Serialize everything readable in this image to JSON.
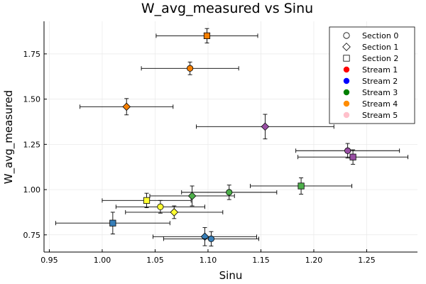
{
  "chart_data": {
    "type": "scatter",
    "title": "W_avg_measured vs Sinu",
    "xlabel": "Sinu",
    "ylabel": "W_avg_measured",
    "xlim": [
      0.945,
      1.298
    ],
    "ylim": [
      0.655,
      1.93
    ],
    "xticks": [
      0.95,
      1.0,
      1.05,
      1.1,
      1.15,
      1.2,
      1.25
    ],
    "xtick_labels": [
      "0.95",
      "1.00",
      "1.05",
      "1.10",
      "1.15",
      "1.20",
      "1.25"
    ],
    "yticks": [
      0.75,
      1.0,
      1.25,
      1.5,
      1.75
    ],
    "ytick_labels": [
      "0.75",
      "1.00",
      "1.25",
      "1.50",
      "1.75"
    ],
    "grid": true,
    "legend_position": "top-right",
    "legend": {
      "shapes": [
        {
          "label": "Section 0",
          "shape": "circle"
        },
        {
          "label": "Section 1",
          "shape": "diamond"
        },
        {
          "label": "Section 2",
          "shape": "square"
        }
      ],
      "colors": [
        {
          "label": "Stream 1",
          "color": "#ff0000"
        },
        {
          "label": "Stream 2",
          "color": "#0000ff"
        },
        {
          "label": "Stream 3",
          "color": "#008000"
        },
        {
          "label": "Stream 4",
          "color": "#ff8c00"
        },
        {
          "label": "Stream 5",
          "color": "#ffc0cb"
        }
      ]
    },
    "points": [
      {
        "x": 1.099,
        "y": 1.85,
        "xerr": 0.048,
        "yerr": 0.04,
        "shape": "square",
        "color": "#f57f00"
      },
      {
        "x": 1.083,
        "y": 1.67,
        "xerr": 0.046,
        "yerr": 0.035,
        "shape": "circle",
        "color": "#f57f00"
      },
      {
        "x": 1.023,
        "y": 1.458,
        "xerr": 0.044,
        "yerr": 0.045,
        "shape": "diamond",
        "color": "#f57f00"
      },
      {
        "x": 1.154,
        "y": 1.348,
        "xerr": 0.065,
        "yerr": 0.068,
        "shape": "diamond",
        "color": "#984ea3"
      },
      {
        "x": 1.232,
        "y": 1.215,
        "xerr": 0.049,
        "yerr": 0.04,
        "shape": "circle",
        "color": "#984ea3"
      },
      {
        "x": 1.237,
        "y": 1.18,
        "xerr": 0.052,
        "yerr": 0.04,
        "shape": "square",
        "color": "#984ea3"
      },
      {
        "x": 1.188,
        "y": 1.02,
        "xerr": 0.048,
        "yerr": 0.045,
        "shape": "square",
        "color": "#4daf4a"
      },
      {
        "x": 1.12,
        "y": 0.985,
        "xerr": 0.045,
        "yerr": 0.04,
        "shape": "circle",
        "color": "#4daf4a"
      },
      {
        "x": 1.085,
        "y": 0.965,
        "xerr": 0.04,
        "yerr": 0.055,
        "shape": "diamond",
        "color": "#4daf4a"
      },
      {
        "x": 1.042,
        "y": 0.94,
        "xerr": 0.042,
        "yerr": 0.04,
        "shape": "square",
        "color": "#ffff33"
      },
      {
        "x": 1.055,
        "y": 0.905,
        "xerr": 0.042,
        "yerr": 0.035,
        "shape": "circle",
        "color": "#ffff33"
      },
      {
        "x": 1.068,
        "y": 0.875,
        "xerr": 0.046,
        "yerr": 0.035,
        "shape": "diamond",
        "color": "#ffff33"
      },
      {
        "x": 1.01,
        "y": 0.815,
        "xerr": 0.054,
        "yerr": 0.06,
        "shape": "square",
        "color": "#377eb8"
      },
      {
        "x": 1.097,
        "y": 0.74,
        "xerr": 0.049,
        "yerr": 0.05,
        "shape": "diamond",
        "color": "#377eb8"
      },
      {
        "x": 1.103,
        "y": 0.728,
        "xerr": 0.045,
        "yerr": 0.04,
        "shape": "circle",
        "color": "#377eb8"
      }
    ]
  }
}
